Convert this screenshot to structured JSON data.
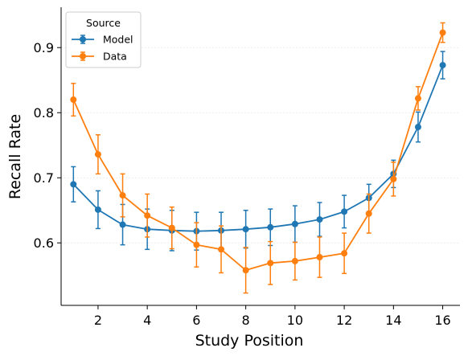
{
  "chart_data": {
    "type": "line",
    "title": "",
    "xlabel": "Study Position",
    "ylabel": "Recall Rate",
    "xlim": [
      0.5,
      16.7
    ],
    "ylim": [
      0.504,
      0.962
    ],
    "xticks": [
      2,
      4,
      6,
      8,
      10,
      12,
      14,
      16
    ],
    "yticks": [
      0.6,
      0.7,
      0.8,
      0.9
    ],
    "grid": "horizontal, faint",
    "legend": {
      "title": "Source",
      "placement": "top-left"
    },
    "x": [
      1,
      2,
      3,
      4,
      5,
      6,
      7,
      8,
      9,
      10,
      11,
      12,
      13,
      14,
      15,
      16
    ],
    "series": [
      {
        "name": "Model",
        "color": "#1f77b4",
        "values": [
          0.69,
          0.651,
          0.628,
          0.621,
          0.619,
          0.618,
          0.619,
          0.621,
          0.624,
          0.629,
          0.636,
          0.648,
          0.669,
          0.706,
          0.778,
          0.873
        ],
        "errors": [
          0.027,
          0.029,
          0.031,
          0.031,
          0.031,
          0.029,
          0.028,
          0.029,
          0.028,
          0.028,
          0.026,
          0.025,
          0.021,
          0.021,
          0.023,
          0.021
        ]
      },
      {
        "name": "Data",
        "color": "#ff7f0e",
        "values": [
          0.82,
          0.736,
          0.673,
          0.642,
          0.623,
          0.597,
          0.59,
          0.558,
          0.569,
          0.572,
          0.578,
          0.584,
          0.645,
          0.698,
          0.822,
          0.923
        ],
        "errors": [
          0.025,
          0.03,
          0.033,
          0.033,
          0.032,
          0.034,
          0.036,
          0.035,
          0.033,
          0.029,
          0.031,
          0.031,
          0.03,
          0.026,
          0.018,
          0.015
        ]
      }
    ]
  }
}
